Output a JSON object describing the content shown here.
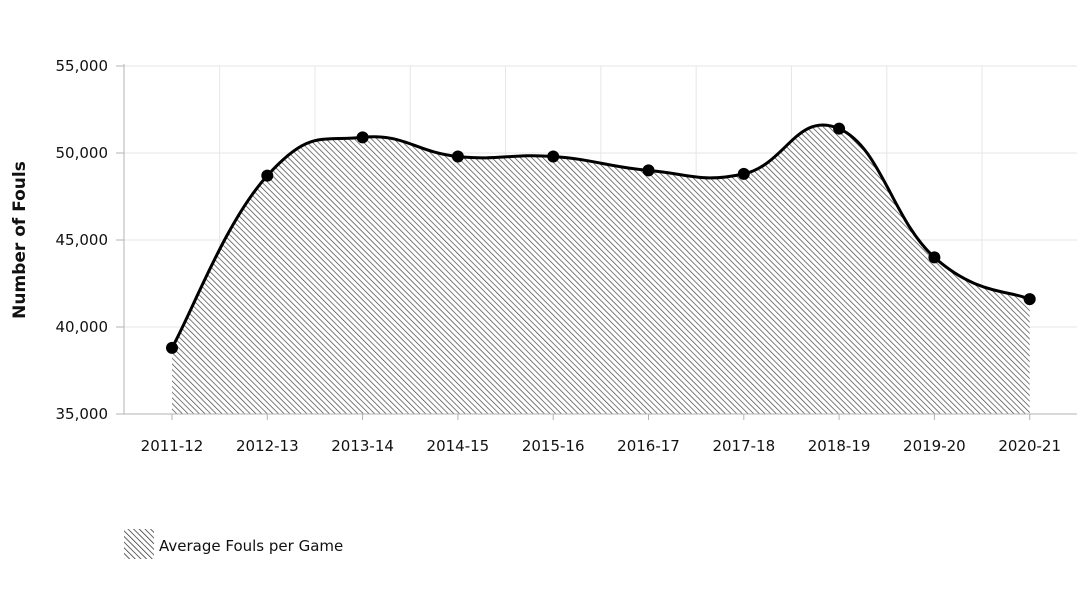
{
  "chart_data": {
    "type": "area",
    "title": "",
    "xlabel": "",
    "ylabel": "Number of Fouls",
    "categories": [
      "2011-12",
      "2012-13",
      "2013-14",
      "2014-15",
      "2015-16",
      "2016-17",
      "2017-18",
      "2018-19",
      "2019-20",
      "2020-21"
    ],
    "series": [
      {
        "name": "Average Fouls per Game",
        "values": [
          38800,
          48700,
          50900,
          49800,
          49800,
          49000,
          48800,
          51400,
          44000,
          41600
        ]
      }
    ],
    "ylim": [
      35000,
      55000
    ],
    "yticks": [
      35000,
      40000,
      45000,
      50000,
      55000
    ],
    "ytick_labels": [
      "35,000",
      "40,000",
      "45,000",
      "50,000",
      "55,000"
    ],
    "grid": true,
    "legend_position": "bottom-left",
    "colors": {
      "line": "#000000",
      "marker": "#000000",
      "fill_pattern": "diagonal-hatch",
      "fill_color": "#555555",
      "grid": "#e6e6e6",
      "axis": "#b3b3b3"
    }
  }
}
